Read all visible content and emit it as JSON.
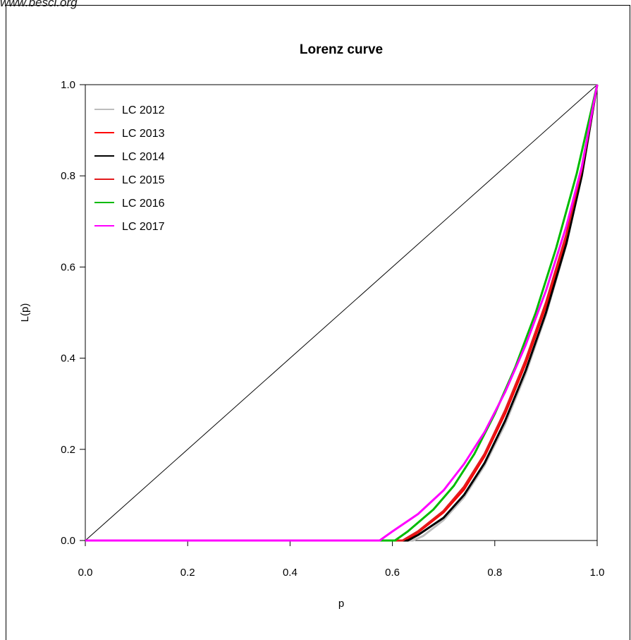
{
  "watermark": "www.besci.org",
  "chart_data": {
    "type": "line",
    "title": "Lorenz curve",
    "xlabel": "p",
    "ylabel": "L(p)",
    "xlim": [
      0,
      1
    ],
    "ylim": [
      0,
      1
    ],
    "x_ticks": [
      "0.0",
      "0.2",
      "0.4",
      "0.6",
      "0.8",
      "1.0"
    ],
    "y_ticks": [
      "0.0",
      "0.2",
      "0.4",
      "0.6",
      "0.8",
      "1.0"
    ],
    "legend_position": "top-left",
    "equality_line": {
      "x": [
        0,
        1
      ],
      "y": [
        0,
        1
      ],
      "color": "#000000"
    },
    "series": [
      {
        "name": "LC 2012",
        "color": "#bdbdbd",
        "x": [
          0,
          0.64,
          0.66,
          0.7,
          0.74,
          0.78,
          0.82,
          0.86,
          0.9,
          0.94,
          0.97,
          1.0
        ],
        "y": [
          0,
          0,
          0.01,
          0.045,
          0.095,
          0.165,
          0.255,
          0.365,
          0.495,
          0.65,
          0.8,
          1.0
        ]
      },
      {
        "name": "LC 2013",
        "color": "#ff0000",
        "x": [
          0,
          0.625,
          0.65,
          0.7,
          0.74,
          0.78,
          0.82,
          0.86,
          0.9,
          0.94,
          0.97,
          1.0
        ],
        "y": [
          0,
          0,
          0.018,
          0.062,
          0.112,
          0.185,
          0.278,
          0.388,
          0.515,
          0.665,
          0.81,
          1.0
        ]
      },
      {
        "name": "LC 2014",
        "color": "#000000",
        "x": [
          0,
          0.63,
          0.65,
          0.7,
          0.74,
          0.78,
          0.82,
          0.86,
          0.9,
          0.94,
          0.97,
          1.0
        ],
        "y": [
          0,
          0,
          0.012,
          0.05,
          0.1,
          0.17,
          0.262,
          0.372,
          0.5,
          0.652,
          0.8,
          1.0
        ]
      },
      {
        "name": "LC 2015",
        "color": "#e31a1c",
        "x": [
          0,
          0.62,
          0.65,
          0.7,
          0.74,
          0.78,
          0.82,
          0.86,
          0.9,
          0.94,
          0.97,
          1.0
        ],
        "y": [
          0,
          0,
          0.02,
          0.065,
          0.118,
          0.19,
          0.285,
          0.395,
          0.522,
          0.672,
          0.815,
          1.0
        ]
      },
      {
        "name": "LC 2016",
        "color": "#00bb00",
        "x": [
          0,
          0.605,
          0.63,
          0.68,
          0.72,
          0.76,
          0.8,
          0.84,
          0.88,
          0.92,
          0.96,
          1.0
        ],
        "y": [
          0,
          0,
          0.02,
          0.068,
          0.12,
          0.19,
          0.278,
          0.38,
          0.5,
          0.642,
          0.805,
          1.0
        ]
      },
      {
        "name": "LC 2017",
        "color": "#ff00ff",
        "x": [
          0,
          0.575,
          0.6,
          0.65,
          0.7,
          0.74,
          0.78,
          0.82,
          0.86,
          0.9,
          0.94,
          0.97,
          1.0
        ],
        "y": [
          0,
          0,
          0.02,
          0.058,
          0.11,
          0.168,
          0.238,
          0.325,
          0.428,
          0.548,
          0.69,
          0.82,
          1.0
        ]
      }
    ]
  }
}
